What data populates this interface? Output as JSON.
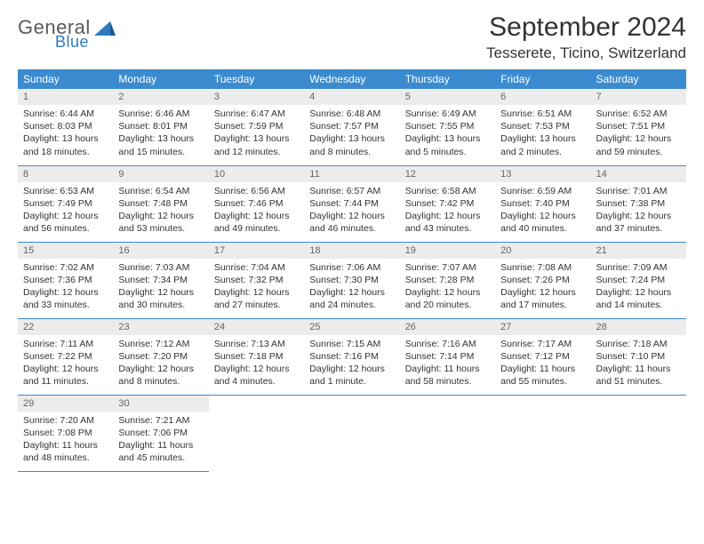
{
  "logo": {
    "general": "General",
    "blue": "Blue"
  },
  "title": "September 2024",
  "location": "Tesserete, Ticino, Switzerland",
  "colors": {
    "header_bg": "#3b8bd0",
    "header_text": "#ffffff",
    "daynum_bg": "#ececec",
    "daynum_text": "#666666",
    "cell_text": "#333333",
    "row_border": "#3b8bd0",
    "logo_gray": "#5a5a5a",
    "logo_blue": "#2b7cc0"
  },
  "weekdays": [
    "Sunday",
    "Monday",
    "Tuesday",
    "Wednesday",
    "Thursday",
    "Friday",
    "Saturday"
  ],
  "weeks": [
    [
      {
        "n": "1",
        "sr": "Sunrise: 6:44 AM",
        "ss": "Sunset: 8:03 PM",
        "dl": "Daylight: 13 hours and 18 minutes."
      },
      {
        "n": "2",
        "sr": "Sunrise: 6:46 AM",
        "ss": "Sunset: 8:01 PM",
        "dl": "Daylight: 13 hours and 15 minutes."
      },
      {
        "n": "3",
        "sr": "Sunrise: 6:47 AM",
        "ss": "Sunset: 7:59 PM",
        "dl": "Daylight: 13 hours and 12 minutes."
      },
      {
        "n": "4",
        "sr": "Sunrise: 6:48 AM",
        "ss": "Sunset: 7:57 PM",
        "dl": "Daylight: 13 hours and 8 minutes."
      },
      {
        "n": "5",
        "sr": "Sunrise: 6:49 AM",
        "ss": "Sunset: 7:55 PM",
        "dl": "Daylight: 13 hours and 5 minutes."
      },
      {
        "n": "6",
        "sr": "Sunrise: 6:51 AM",
        "ss": "Sunset: 7:53 PM",
        "dl": "Daylight: 13 hours and 2 minutes."
      },
      {
        "n": "7",
        "sr": "Sunrise: 6:52 AM",
        "ss": "Sunset: 7:51 PM",
        "dl": "Daylight: 12 hours and 59 minutes."
      }
    ],
    [
      {
        "n": "8",
        "sr": "Sunrise: 6:53 AM",
        "ss": "Sunset: 7:49 PM",
        "dl": "Daylight: 12 hours and 56 minutes."
      },
      {
        "n": "9",
        "sr": "Sunrise: 6:54 AM",
        "ss": "Sunset: 7:48 PM",
        "dl": "Daylight: 12 hours and 53 minutes."
      },
      {
        "n": "10",
        "sr": "Sunrise: 6:56 AM",
        "ss": "Sunset: 7:46 PM",
        "dl": "Daylight: 12 hours and 49 minutes."
      },
      {
        "n": "11",
        "sr": "Sunrise: 6:57 AM",
        "ss": "Sunset: 7:44 PM",
        "dl": "Daylight: 12 hours and 46 minutes."
      },
      {
        "n": "12",
        "sr": "Sunrise: 6:58 AM",
        "ss": "Sunset: 7:42 PM",
        "dl": "Daylight: 12 hours and 43 minutes."
      },
      {
        "n": "13",
        "sr": "Sunrise: 6:59 AM",
        "ss": "Sunset: 7:40 PM",
        "dl": "Daylight: 12 hours and 40 minutes."
      },
      {
        "n": "14",
        "sr": "Sunrise: 7:01 AM",
        "ss": "Sunset: 7:38 PM",
        "dl": "Daylight: 12 hours and 37 minutes."
      }
    ],
    [
      {
        "n": "15",
        "sr": "Sunrise: 7:02 AM",
        "ss": "Sunset: 7:36 PM",
        "dl": "Daylight: 12 hours and 33 minutes."
      },
      {
        "n": "16",
        "sr": "Sunrise: 7:03 AM",
        "ss": "Sunset: 7:34 PM",
        "dl": "Daylight: 12 hours and 30 minutes."
      },
      {
        "n": "17",
        "sr": "Sunrise: 7:04 AM",
        "ss": "Sunset: 7:32 PM",
        "dl": "Daylight: 12 hours and 27 minutes."
      },
      {
        "n": "18",
        "sr": "Sunrise: 7:06 AM",
        "ss": "Sunset: 7:30 PM",
        "dl": "Daylight: 12 hours and 24 minutes."
      },
      {
        "n": "19",
        "sr": "Sunrise: 7:07 AM",
        "ss": "Sunset: 7:28 PM",
        "dl": "Daylight: 12 hours and 20 minutes."
      },
      {
        "n": "20",
        "sr": "Sunrise: 7:08 AM",
        "ss": "Sunset: 7:26 PM",
        "dl": "Daylight: 12 hours and 17 minutes."
      },
      {
        "n": "21",
        "sr": "Sunrise: 7:09 AM",
        "ss": "Sunset: 7:24 PM",
        "dl": "Daylight: 12 hours and 14 minutes."
      }
    ],
    [
      {
        "n": "22",
        "sr": "Sunrise: 7:11 AM",
        "ss": "Sunset: 7:22 PM",
        "dl": "Daylight: 12 hours and 11 minutes."
      },
      {
        "n": "23",
        "sr": "Sunrise: 7:12 AM",
        "ss": "Sunset: 7:20 PM",
        "dl": "Daylight: 12 hours and 8 minutes."
      },
      {
        "n": "24",
        "sr": "Sunrise: 7:13 AM",
        "ss": "Sunset: 7:18 PM",
        "dl": "Daylight: 12 hours and 4 minutes."
      },
      {
        "n": "25",
        "sr": "Sunrise: 7:15 AM",
        "ss": "Sunset: 7:16 PM",
        "dl": "Daylight: 12 hours and 1 minute."
      },
      {
        "n": "26",
        "sr": "Sunrise: 7:16 AM",
        "ss": "Sunset: 7:14 PM",
        "dl": "Daylight: 11 hours and 58 minutes."
      },
      {
        "n": "27",
        "sr": "Sunrise: 7:17 AM",
        "ss": "Sunset: 7:12 PM",
        "dl": "Daylight: 11 hours and 55 minutes."
      },
      {
        "n": "28",
        "sr": "Sunrise: 7:18 AM",
        "ss": "Sunset: 7:10 PM",
        "dl": "Daylight: 11 hours and 51 minutes."
      }
    ],
    [
      {
        "n": "29",
        "sr": "Sunrise: 7:20 AM",
        "ss": "Sunset: 7:08 PM",
        "dl": "Daylight: 11 hours and 48 minutes."
      },
      {
        "n": "30",
        "sr": "Sunrise: 7:21 AM",
        "ss": "Sunset: 7:06 PM",
        "dl": "Daylight: 11 hours and 45 minutes."
      },
      null,
      null,
      null,
      null,
      null
    ]
  ]
}
